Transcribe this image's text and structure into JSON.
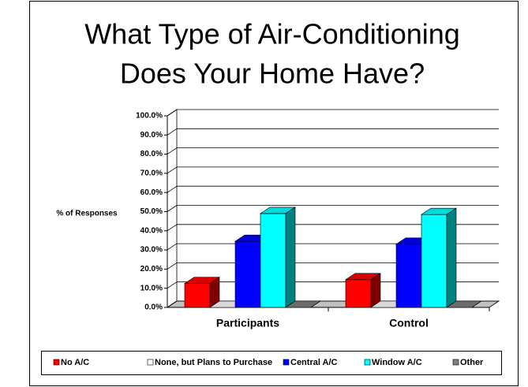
{
  "chart_data": {
    "type": "bar3d",
    "title": "What Type of Air-Conditioning Does Your Home Have?",
    "title_lines": [
      "What Type of Air-Conditioning",
      "Does Your Home Have?"
    ],
    "y_label": "% of Responses",
    "categories": [
      "Participants",
      "Control"
    ],
    "series": [
      {
        "name": "No A/C",
        "color": "#ff0000",
        "values": [
          12.5,
          14.5
        ]
      },
      {
        "name": "None, but Plans to Purchase",
        "color": "#ffffff",
        "values": [
          0,
          0
        ]
      },
      {
        "name": "Central A/C",
        "color": "#0000ff",
        "values": [
          34.5,
          33
        ]
      },
      {
        "name": "Window A/C",
        "color": "#00ffff",
        "values": [
          49,
          48.5
        ]
      },
      {
        "name": "Other",
        "color": "#808080",
        "values": [
          0,
          0
        ]
      }
    ],
    "ylim": [
      0,
      100
    ],
    "yticks": [
      {
        "value": 0,
        "label": "0.0%"
      },
      {
        "value": 10,
        "label": "10.0%"
      },
      {
        "value": 20,
        "label": "20.0%"
      },
      {
        "value": 30,
        "label": "30.0%"
      },
      {
        "value": 40,
        "label": "40.0%"
      },
      {
        "value": 50,
        "label": "50.0%"
      },
      {
        "value": 60,
        "label": "60.0%"
      },
      {
        "value": 70,
        "label": "70.0%"
      },
      {
        "value": 80,
        "label": "80.0%"
      },
      {
        "value": 90,
        "label": "90.0%"
      },
      {
        "value": 100,
        "label": "100.0%"
      }
    ],
    "grid": true,
    "legend": "bottom"
  }
}
